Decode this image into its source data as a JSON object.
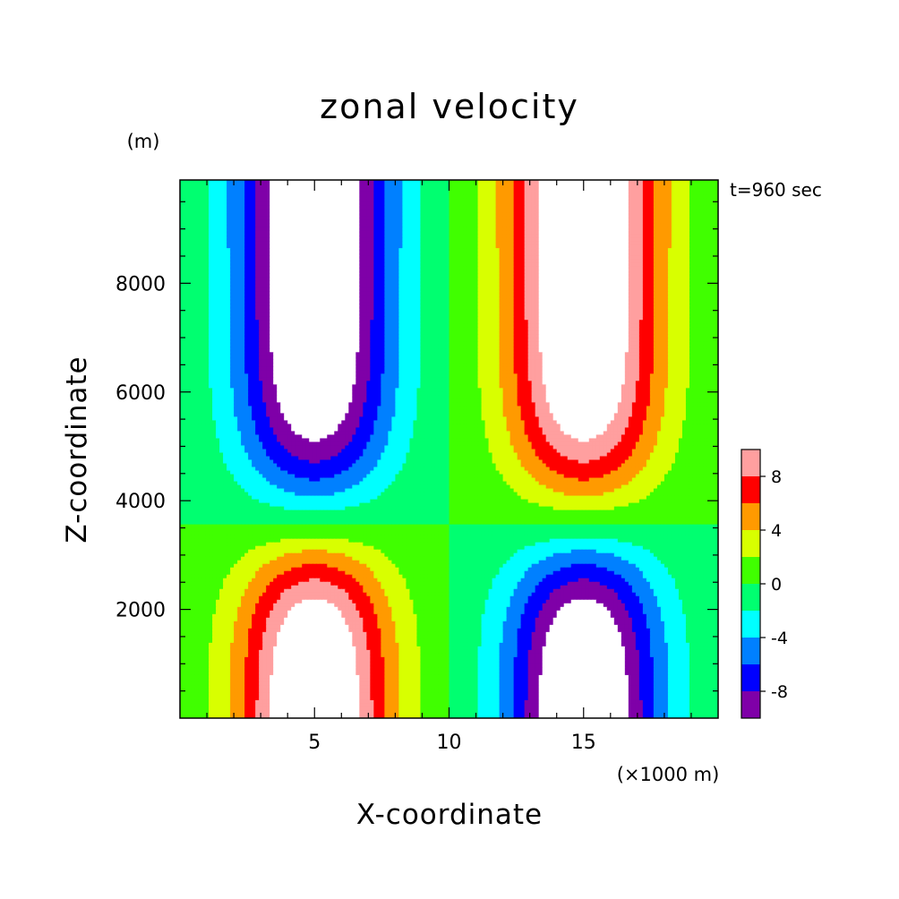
{
  "chart_data": {
    "type": "heatmap",
    "title": "zonal velocity",
    "xlabel": "X-coordinate",
    "ylabel": "Z-coordinate",
    "x_unit": "(×1000 m)",
    "y_unit": "(m)",
    "time_label": "t=960 sec",
    "xlim": [
      0,
      20
    ],
    "ylim": [
      0,
      9900
    ],
    "x_ticks": [
      5,
      10,
      15
    ],
    "y_ticks": [
      2000,
      4000,
      6000,
      8000
    ],
    "colorbar": {
      "levels": [
        -10,
        -8,
        -6,
        -4,
        -2,
        0,
        2,
        4,
        6,
        8,
        10
      ],
      "colors": [
        "#7f00a8",
        "#0000ff",
        "#0080ff",
        "#00ffff",
        "#00ff70",
        "#40ff00",
        "#d8ff00",
        "#ff9a00",
        "#ff0000",
        "#ff9f9f"
      ],
      "tick_labels": [
        "-8",
        "-4",
        "0",
        "4",
        "8"
      ],
      "tick_values": [
        -8,
        -4,
        0,
        4,
        8
      ],
      "above_max_color": "#ffffff",
      "below_min_color": "#ffffff"
    },
    "field": {
      "amplitude": 11,
      "description_of_pattern": "upper-left and lower-right negative cells, upper-right and lower-left positive cells",
      "cells": [
        {
          "x": 5,
          "z": 9900,
          "sign": -1
        },
        {
          "x": 15,
          "z": 9900,
          "sign": 1
        },
        {
          "x": 5,
          "z": 0,
          "sign": 1
        },
        {
          "x": 15,
          "z": 0,
          "sign": -1
        }
      ]
    }
  }
}
